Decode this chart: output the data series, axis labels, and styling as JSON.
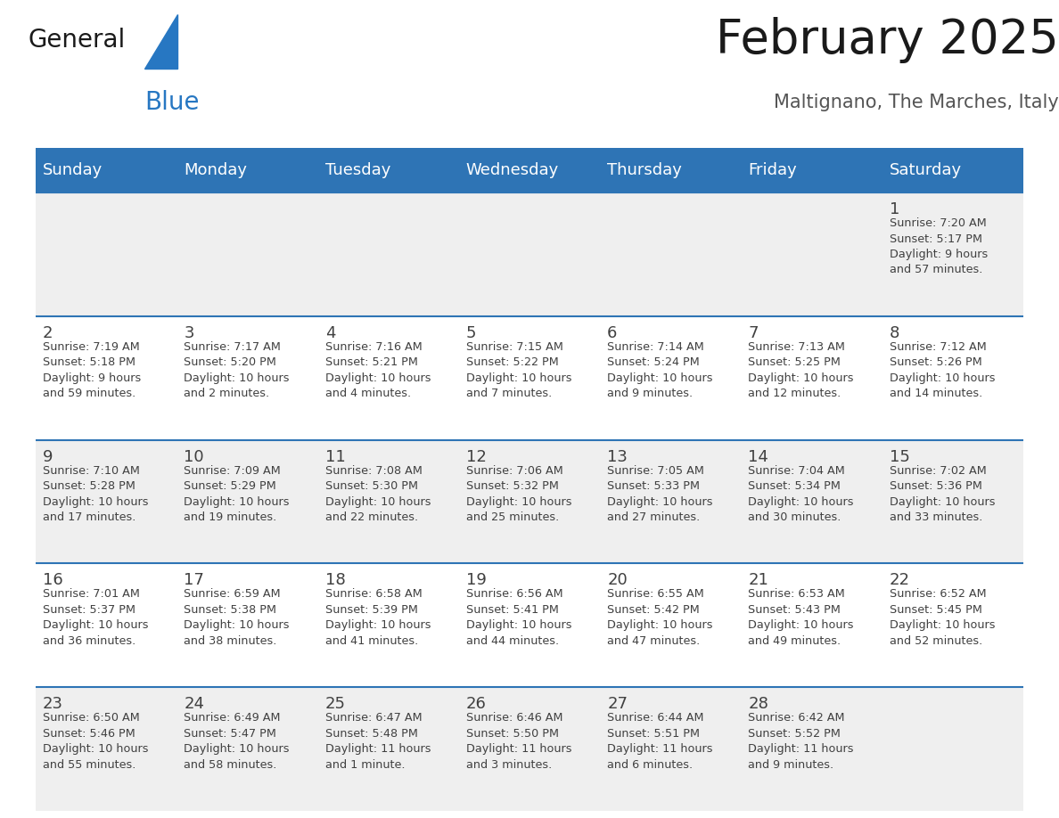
{
  "title": "February 2025",
  "subtitle": "Maltignano, The Marches, Italy",
  "days_of_week": [
    "Sunday",
    "Monday",
    "Tuesday",
    "Wednesday",
    "Thursday",
    "Friday",
    "Saturday"
  ],
  "header_bg": "#2E74B5",
  "header_text_color": "#FFFFFF",
  "cell_bg_light": "#EFEFEF",
  "cell_bg_white": "#FFFFFF",
  "separator_color": "#2E74B5",
  "text_color": "#404040",
  "day_num_color": "#404040",
  "weeks": [
    [
      {
        "day": null,
        "info": null
      },
      {
        "day": null,
        "info": null
      },
      {
        "day": null,
        "info": null
      },
      {
        "day": null,
        "info": null
      },
      {
        "day": null,
        "info": null
      },
      {
        "day": null,
        "info": null
      },
      {
        "day": 1,
        "info": "Sunrise: 7:20 AM\nSunset: 5:17 PM\nDaylight: 9 hours\nand 57 minutes."
      }
    ],
    [
      {
        "day": 2,
        "info": "Sunrise: 7:19 AM\nSunset: 5:18 PM\nDaylight: 9 hours\nand 59 minutes."
      },
      {
        "day": 3,
        "info": "Sunrise: 7:17 AM\nSunset: 5:20 PM\nDaylight: 10 hours\nand 2 minutes."
      },
      {
        "day": 4,
        "info": "Sunrise: 7:16 AM\nSunset: 5:21 PM\nDaylight: 10 hours\nand 4 minutes."
      },
      {
        "day": 5,
        "info": "Sunrise: 7:15 AM\nSunset: 5:22 PM\nDaylight: 10 hours\nand 7 minutes."
      },
      {
        "day": 6,
        "info": "Sunrise: 7:14 AM\nSunset: 5:24 PM\nDaylight: 10 hours\nand 9 minutes."
      },
      {
        "day": 7,
        "info": "Sunrise: 7:13 AM\nSunset: 5:25 PM\nDaylight: 10 hours\nand 12 minutes."
      },
      {
        "day": 8,
        "info": "Sunrise: 7:12 AM\nSunset: 5:26 PM\nDaylight: 10 hours\nand 14 minutes."
      }
    ],
    [
      {
        "day": 9,
        "info": "Sunrise: 7:10 AM\nSunset: 5:28 PM\nDaylight: 10 hours\nand 17 minutes."
      },
      {
        "day": 10,
        "info": "Sunrise: 7:09 AM\nSunset: 5:29 PM\nDaylight: 10 hours\nand 19 minutes."
      },
      {
        "day": 11,
        "info": "Sunrise: 7:08 AM\nSunset: 5:30 PM\nDaylight: 10 hours\nand 22 minutes."
      },
      {
        "day": 12,
        "info": "Sunrise: 7:06 AM\nSunset: 5:32 PM\nDaylight: 10 hours\nand 25 minutes."
      },
      {
        "day": 13,
        "info": "Sunrise: 7:05 AM\nSunset: 5:33 PM\nDaylight: 10 hours\nand 27 minutes."
      },
      {
        "day": 14,
        "info": "Sunrise: 7:04 AM\nSunset: 5:34 PM\nDaylight: 10 hours\nand 30 minutes."
      },
      {
        "day": 15,
        "info": "Sunrise: 7:02 AM\nSunset: 5:36 PM\nDaylight: 10 hours\nand 33 minutes."
      }
    ],
    [
      {
        "day": 16,
        "info": "Sunrise: 7:01 AM\nSunset: 5:37 PM\nDaylight: 10 hours\nand 36 minutes."
      },
      {
        "day": 17,
        "info": "Sunrise: 6:59 AM\nSunset: 5:38 PM\nDaylight: 10 hours\nand 38 minutes."
      },
      {
        "day": 18,
        "info": "Sunrise: 6:58 AM\nSunset: 5:39 PM\nDaylight: 10 hours\nand 41 minutes."
      },
      {
        "day": 19,
        "info": "Sunrise: 6:56 AM\nSunset: 5:41 PM\nDaylight: 10 hours\nand 44 minutes."
      },
      {
        "day": 20,
        "info": "Sunrise: 6:55 AM\nSunset: 5:42 PM\nDaylight: 10 hours\nand 47 minutes."
      },
      {
        "day": 21,
        "info": "Sunrise: 6:53 AM\nSunset: 5:43 PM\nDaylight: 10 hours\nand 49 minutes."
      },
      {
        "day": 22,
        "info": "Sunrise: 6:52 AM\nSunset: 5:45 PM\nDaylight: 10 hours\nand 52 minutes."
      }
    ],
    [
      {
        "day": 23,
        "info": "Sunrise: 6:50 AM\nSunset: 5:46 PM\nDaylight: 10 hours\nand 55 minutes."
      },
      {
        "day": 24,
        "info": "Sunrise: 6:49 AM\nSunset: 5:47 PM\nDaylight: 10 hours\nand 58 minutes."
      },
      {
        "day": 25,
        "info": "Sunrise: 6:47 AM\nSunset: 5:48 PM\nDaylight: 11 hours\nand 1 minute."
      },
      {
        "day": 26,
        "info": "Sunrise: 6:46 AM\nSunset: 5:50 PM\nDaylight: 11 hours\nand 3 minutes."
      },
      {
        "day": 27,
        "info": "Sunrise: 6:44 AM\nSunset: 5:51 PM\nDaylight: 11 hours\nand 6 minutes."
      },
      {
        "day": 28,
        "info": "Sunrise: 6:42 AM\nSunset: 5:52 PM\nDaylight: 11 hours\nand 9 minutes."
      },
      {
        "day": null,
        "info": null
      }
    ]
  ],
  "title_fontsize": 38,
  "subtitle_fontsize": 15,
  "header_fontsize": 13,
  "day_num_fontsize": 13,
  "info_fontsize": 9.2,
  "logo_general_fontsize": 20,
  "logo_blue_fontsize": 20
}
